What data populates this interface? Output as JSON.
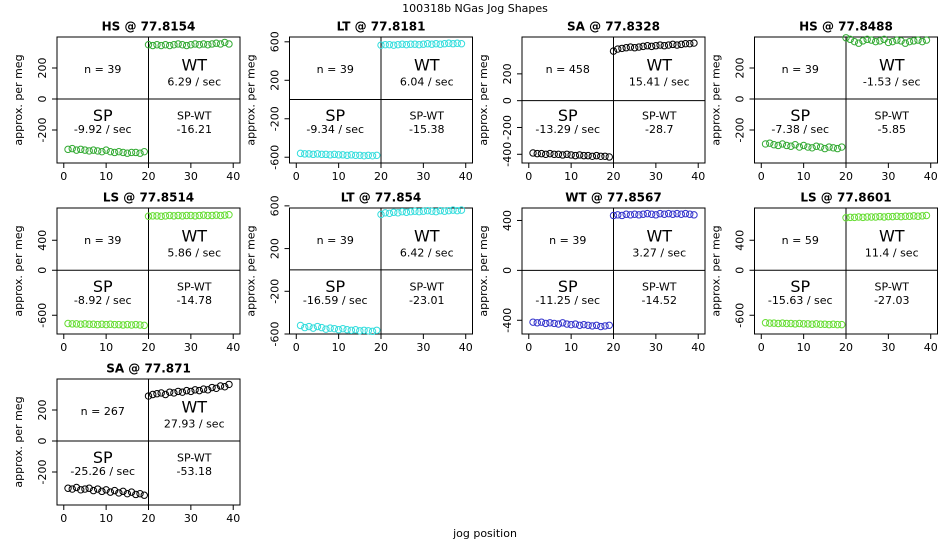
{
  "suptitle": "100318b   NGas Jog Shapes",
  "xlabel": "jog position",
  "chart_data": [
    {
      "type": "scatter",
      "title": "HS @ 77.8154",
      "ylabel": "approx. per meg",
      "x": [
        1,
        2,
        3,
        4,
        5,
        6,
        7,
        8,
        9,
        10,
        11,
        12,
        13,
        14,
        15,
        16,
        17,
        18,
        19,
        20,
        21,
        22,
        23,
        24,
        25,
        26,
        27,
        28,
        29,
        30,
        31,
        32,
        33,
        34,
        35,
        36,
        37,
        38,
        39
      ],
      "series": [
        {
          "color": "#33aa33",
          "values": [
            -325,
            -320,
            -330,
            -325,
            -330,
            -335,
            -330,
            -335,
            -340,
            -330,
            -340,
            -345,
            -340,
            -345,
            -350,
            -345,
            -345,
            -350,
            -340,
            350,
            345,
            350,
            345,
            350,
            345,
            350,
            355,
            350,
            345,
            350,
            355,
            350,
            355,
            350,
            355,
            360,
            355,
            365,
            355
          ]
        }
      ],
      "xlim": [
        -1.6,
        41.6
      ],
      "xticks": [
        0,
        10,
        20,
        30,
        40
      ],
      "ylim": [
        -413,
        400
      ],
      "yticks": [
        -200,
        0,
        200
      ],
      "vlines": [
        20
      ],
      "hlines": [
        0
      ],
      "annotations": {
        "n": "n = 39",
        "wt": "WT",
        "wt_rate": "6.29 / sec",
        "sp": "SP",
        "sp_rate": "-9.92 / sec",
        "diff_label": "SP-WT",
        "diff": "-16.21"
      }
    },
    {
      "type": "scatter",
      "title": "LT @ 77.8181",
      "ylabel": "approx. per meg",
      "x": [
        1,
        2,
        3,
        4,
        5,
        6,
        7,
        8,
        9,
        10,
        11,
        12,
        13,
        14,
        15,
        16,
        17,
        18,
        19,
        20,
        21,
        22,
        23,
        24,
        25,
        26,
        27,
        28,
        29,
        30,
        31,
        32,
        33,
        34,
        35,
        36,
        37,
        38,
        39
      ],
      "series": [
        {
          "color": "#33dddd",
          "values": [
            -560,
            -565,
            -565,
            -570,
            -565,
            -570,
            -570,
            -575,
            -570,
            -575,
            -575,
            -580,
            -575,
            -580,
            -580,
            -585,
            -580,
            -585,
            -580,
            565,
            570,
            570,
            565,
            570,
            575,
            570,
            575,
            575,
            570,
            575,
            580,
            575,
            580,
            575,
            580,
            585,
            580,
            585,
            580
          ]
        }
      ],
      "xlim": [
        -1.6,
        41.6
      ],
      "xticks": [
        0,
        10,
        20,
        30,
        40
      ],
      "ylim": [
        -660,
        650
      ],
      "yticks": [
        -600,
        -200,
        200,
        600
      ],
      "vlines": [
        20
      ],
      "hlines": [
        0
      ],
      "annotations": {
        "n": "n = 39",
        "wt": "WT",
        "wt_rate": "6.04 / sec",
        "sp": "SP",
        "sp_rate": "-9.34 / sec",
        "diff_label": "SP-WT",
        "diff": "-15.38"
      }
    },
    {
      "type": "scatter",
      "title": "SA @ 77.8328",
      "ylabel": "approx. per meg",
      "x": [
        1,
        2,
        3,
        4,
        5,
        6,
        7,
        8,
        9,
        10,
        11,
        12,
        13,
        14,
        15,
        16,
        17,
        18,
        19,
        20,
        21,
        22,
        23,
        24,
        25,
        26,
        27,
        28,
        29,
        30,
        31,
        32,
        33,
        34,
        35,
        36,
        37,
        38,
        39
      ],
      "series": [
        {
          "color": "#000000",
          "values": [
            -390,
            -395,
            -395,
            -400,
            -395,
            -400,
            -400,
            -405,
            -400,
            -405,
            -410,
            -405,
            -410,
            -410,
            -415,
            -410,
            -415,
            -415,
            -420,
            370,
            385,
            390,
            395,
            400,
            395,
            400,
            405,
            410,
            405,
            410,
            415,
            410,
            415,
            420,
            415,
            420,
            425,
            425,
            430
          ]
        }
      ],
      "xlim": [
        -1.6,
        41.6
      ],
      "xticks": [
        0,
        10,
        20,
        30,
        40
      ],
      "ylim": [
        -465,
        475
      ],
      "yticks": [
        -400,
        -200,
        0,
        200
      ],
      "vlines": [
        20
      ],
      "hlines": [
        0
      ],
      "annotations": {
        "n": "n = 458",
        "wt": "WT",
        "wt_rate": "15.41 / sec",
        "sp": "SP",
        "sp_rate": "-13.29 / sec",
        "diff_label": "SP-WT",
        "diff": "-28.7"
      }
    },
    {
      "type": "scatter",
      "title": "HS @ 77.8488",
      "ylabel": "approx. per meg",
      "x": [
        1,
        2,
        3,
        4,
        5,
        6,
        7,
        8,
        9,
        10,
        11,
        12,
        13,
        14,
        15,
        16,
        17,
        18,
        19,
        20,
        21,
        22,
        23,
        24,
        25,
        26,
        27,
        28,
        29,
        30,
        31,
        32,
        33,
        34,
        35,
        36,
        37,
        38,
        39
      ],
      "series": [
        {
          "color": "#33aa33",
          "values": [
            -290,
            -285,
            -295,
            -300,
            -290,
            -300,
            -305,
            -295,
            -310,
            -300,
            -310,
            -315,
            -305,
            -310,
            -320,
            -310,
            -315,
            -320,
            -310,
            395,
            385,
            370,
            360,
            375,
            385,
            380,
            370,
            375,
            385,
            365,
            370,
            380,
            375,
            360,
            370,
            375,
            380,
            370,
            380
          ]
        }
      ],
      "xlim": [
        -1.6,
        41.6
      ],
      "xticks": [
        0,
        10,
        20,
        30,
        40
      ],
      "ylim": [
        -413,
        400
      ],
      "yticks": [
        -200,
        0,
        200
      ],
      "vlines": [
        20
      ],
      "hlines": [
        0
      ],
      "annotations": {
        "n": "n = 39",
        "wt": "WT",
        "wt_rate": "-1.53 / sec",
        "sp": "SP",
        "sp_rate": "-7.38 / sec",
        "diff_label": "SP-WT",
        "diff": "-5.85"
      }
    },
    {
      "type": "scatter",
      "title": "LS @ 77.8514",
      "ylabel": "approx. per meg",
      "x": [
        1,
        2,
        3,
        4,
        5,
        6,
        7,
        8,
        9,
        10,
        11,
        12,
        13,
        14,
        15,
        16,
        17,
        18,
        19,
        20,
        21,
        22,
        23,
        24,
        25,
        26,
        27,
        28,
        29,
        30,
        31,
        32,
        33,
        34,
        35,
        36,
        37,
        38,
        39
      ],
      "series": [
        {
          "color": "#66dd33",
          "values": [
            -710,
            -715,
            -715,
            -720,
            -715,
            -720,
            -720,
            -725,
            -720,
            -725,
            -720,
            -725,
            -725,
            -730,
            -725,
            -730,
            -725,
            -730,
            -735,
            720,
            725,
            725,
            720,
            725,
            730,
            725,
            730,
            725,
            730,
            730,
            725,
            730,
            735,
            730,
            730,
            735,
            730,
            735,
            740
          ]
        }
      ],
      "xlim": [
        -1.6,
        41.6
      ],
      "xticks": [
        0,
        10,
        20,
        30,
        40
      ],
      "ylim": [
        -850,
        830
      ],
      "yticks": [
        -600,
        0,
        400
      ],
      "vlines": [
        20
      ],
      "hlines": [
        0
      ],
      "annotations": {
        "n": "n = 39",
        "wt": "WT",
        "wt_rate": "5.86 / sec",
        "sp": "SP",
        "sp_rate": "-8.92 / sec",
        "diff_label": "SP-WT",
        "diff": "-14.78"
      }
    },
    {
      "type": "scatter",
      "title": "LT @ 77.854",
      "ylabel": "approx. per meg",
      "x": [
        1,
        2,
        3,
        4,
        5,
        6,
        7,
        8,
        9,
        10,
        11,
        12,
        13,
        14,
        15,
        16,
        17,
        18,
        19,
        20,
        21,
        22,
        23,
        24,
        25,
        26,
        27,
        28,
        29,
        30,
        31,
        32,
        33,
        34,
        35,
        36,
        37,
        38,
        39
      ],
      "series": [
        {
          "color": "#33dddd",
          "values": [
            -520,
            -540,
            -530,
            -545,
            -530,
            -540,
            -555,
            -545,
            -550,
            -560,
            -550,
            -560,
            -565,
            -560,
            -570,
            -565,
            -570,
            -575,
            -565,
            520,
            535,
            530,
            540,
            535,
            545,
            540,
            545,
            550,
            545,
            550,
            555,
            550,
            545,
            555,
            550,
            555,
            560,
            555,
            560
          ]
        }
      ],
      "xlim": [
        -1.6,
        41.6
      ],
      "xticks": [
        0,
        10,
        20,
        30,
        40
      ],
      "ylim": [
        -600,
        580
      ],
      "yticks": [
        -600,
        -200,
        200,
        600
      ],
      "vlines": [
        20
      ],
      "hlines": [
        0
      ],
      "annotations": {
        "n": "n = 39",
        "wt": "WT",
        "wt_rate": "6.42 / sec",
        "sp": "SP",
        "sp_rate": "-16.59 / sec",
        "diff_label": "SP-WT",
        "diff": "-23.01"
      }
    },
    {
      "type": "scatter",
      "title": "WT @ 77.8567",
      "ylabel": "approx. per meg",
      "x": [
        1,
        2,
        3,
        4,
        5,
        6,
        7,
        8,
        9,
        10,
        11,
        12,
        13,
        14,
        15,
        16,
        17,
        18,
        19,
        20,
        21,
        22,
        23,
        24,
        25,
        26,
        27,
        28,
        29,
        30,
        31,
        32,
        33,
        34,
        35,
        36,
        37,
        38,
        39
      ],
      "series": [
        {
          "color": "#3333cc",
          "values": [
            -415,
            -420,
            -415,
            -425,
            -420,
            -425,
            -430,
            -420,
            -430,
            -435,
            -430,
            -440,
            -435,
            -440,
            -445,
            -440,
            -450,
            -445,
            -440,
            440,
            445,
            440,
            450,
            445,
            450,
            445,
            450,
            455,
            450,
            445,
            455,
            450,
            455,
            450,
            455,
            450,
            455,
            450,
            445
          ]
        }
      ],
      "xlim": [
        -1.6,
        41.6
      ],
      "xticks": [
        0,
        10,
        20,
        30,
        40
      ],
      "ylim": [
        -510,
        500
      ],
      "yticks": [
        -400,
        0,
        400
      ],
      "vlines": [
        20
      ],
      "hlines": [
        0
      ],
      "annotations": {
        "n": "n = 39",
        "wt": "WT",
        "wt_rate": "3.27 / sec",
        "sp": "SP",
        "sp_rate": "-11.25 / sec",
        "diff_label": "SP-WT",
        "diff": "-14.52"
      }
    },
    {
      "type": "scatter",
      "title": "LS @ 77.8601",
      "ylabel": "approx. per meg",
      "x": [
        1,
        2,
        3,
        4,
        5,
        6,
        7,
        8,
        9,
        10,
        11,
        12,
        13,
        14,
        15,
        16,
        17,
        18,
        19,
        20,
        21,
        22,
        23,
        24,
        25,
        26,
        27,
        28,
        29,
        30,
        31,
        32,
        33,
        34,
        35,
        36,
        37,
        38,
        39
      ],
      "series": [
        {
          "color": "#66dd33",
          "values": [
            -700,
            -705,
            -705,
            -710,
            -705,
            -710,
            -710,
            -715,
            -710,
            -715,
            -715,
            -720,
            -715,
            -720,
            -720,
            -725,
            -720,
            -725,
            -725,
            700,
            705,
            705,
            710,
            705,
            710,
            710,
            710,
            715,
            710,
            715,
            715,
            720,
            715,
            720,
            720,
            725,
            720,
            725,
            730
          ]
        }
      ],
      "xlim": [
        -1.6,
        41.6
      ],
      "xticks": [
        0,
        10,
        20,
        30,
        40
      ],
      "ylim": [
        -850,
        830
      ],
      "yticks": [
        -600,
        0,
        400
      ],
      "vlines": [
        20
      ],
      "hlines": [
        0
      ],
      "annotations": {
        "n": "n = 59",
        "wt": "WT",
        "wt_rate": "11.4 / sec",
        "sp": "SP",
        "sp_rate": "-15.63 / sec",
        "diff_label": "SP-WT",
        "diff": "-27.03"
      }
    },
    {
      "type": "scatter",
      "title": "SA @ 77.871",
      "ylabel": "approx. per meg",
      "x": [
        1,
        2,
        3,
        4,
        5,
        6,
        7,
        8,
        9,
        10,
        11,
        12,
        13,
        14,
        15,
        16,
        17,
        18,
        19,
        20,
        21,
        22,
        23,
        24,
        25,
        26,
        27,
        28,
        29,
        30,
        31,
        32,
        33,
        34,
        35,
        36,
        37,
        38,
        39
      ],
      "series": [
        {
          "color": "#000000",
          "values": [
            -305,
            -310,
            -300,
            -315,
            -310,
            -305,
            -320,
            -310,
            -325,
            -315,
            -330,
            -320,
            -335,
            -325,
            -340,
            -330,
            -345,
            -340,
            -350,
            290,
            300,
            305,
            310,
            300,
            315,
            310,
            320,
            315,
            325,
            320,
            330,
            325,
            335,
            330,
            345,
            340,
            355,
            350,
            365
          ]
        }
      ],
      "xlim": [
        -1.6,
        41.6
      ],
      "xticks": [
        0,
        10,
        20,
        30,
        40
      ],
      "ylim": [
        -413,
        400
      ],
      "yticks": [
        -200,
        0,
        200
      ],
      "vlines": [
        20
      ],
      "hlines": [
        0
      ],
      "annotations": {
        "n": "n = 267",
        "wt": "WT",
        "wt_rate": "27.93 / sec",
        "sp": "SP",
        "sp_rate": "-25.26 / sec",
        "diff_label": "SP-WT",
        "diff": "-53.18"
      }
    }
  ]
}
